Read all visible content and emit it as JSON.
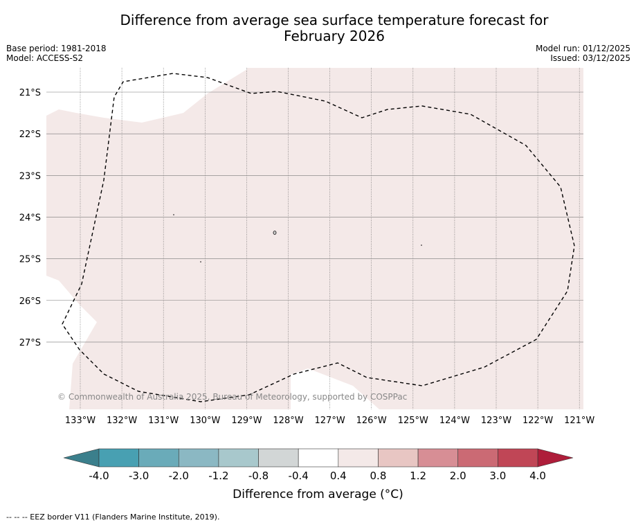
{
  "title_line1": "Difference from average sea surface temperature forecast for",
  "title_line2": "February 2026",
  "base_period": "Base period: 1981-2018",
  "model": "Model: ACCESS-S2",
  "model_run": "Model run: 01/12/2025",
  "issued": "Issued: 03/12/2025",
  "copyright": "© Commonwealth of Australia 2025, Bureau of Meteorology, supported by COSPPac",
  "map": {
    "lon_labels": [
      "133°W",
      "132°W",
      "131°W",
      "130°W",
      "129°W",
      "128°W",
      "127°W",
      "126°W",
      "125°W",
      "124°W",
      "123°W",
      "122°W",
      "121°W"
    ],
    "lat_labels": [
      "21°S",
      "22°S",
      "23°S",
      "24°S",
      "25°S",
      "26°S",
      "27°S"
    ],
    "fill_color": "#f4e9e8",
    "eez_style": "dashed"
  },
  "colorbar": {
    "ticks": [
      "-4.0",
      "-3.0",
      "-2.0",
      "-1.2",
      "-0.8",
      "-0.4",
      "0.4",
      "0.8",
      "1.2",
      "2.0",
      "3.0",
      "4.0"
    ],
    "colors": [
      "#48a0b2",
      "#6aabb9",
      "#8bb8c3",
      "#a8c8cc",
      "#d2d6d6",
      "#ffffff",
      "#f4e9e8",
      "#e8c6c3",
      "#d78e95",
      "#cb6a74",
      "#c04656"
    ],
    "under_color": "#3b7f8c",
    "over_color": "#ae1d3a",
    "label": "Difference from average (°C)"
  },
  "footnote": "--  --  -- EEZ border V11 (Flanders Marine Institute, 2019)."
}
